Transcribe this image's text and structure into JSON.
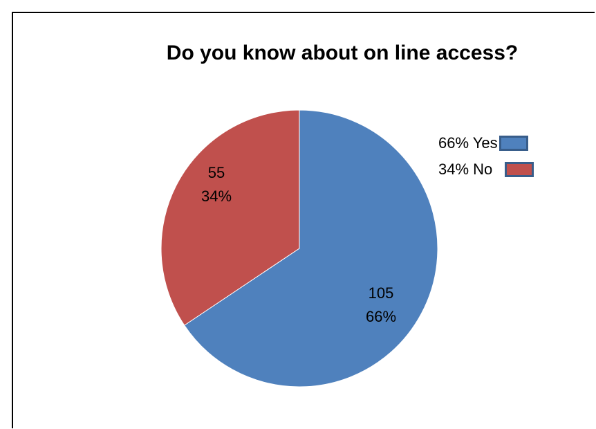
{
  "chart_data": {
    "type": "pie",
    "title": "Do you know about on line access?",
    "series": [
      {
        "values": [
          105,
          55
        ],
        "slices": [
          {
            "label": "Yes",
            "value": 105,
            "percent": 66,
            "value_label": "105",
            "percent_label": "66%",
            "legend_label": "66% Yes",
            "color": "#4f81bd"
          },
          {
            "label": "No",
            "value": 55,
            "percent": 34,
            "value_label": "55",
            "percent_label": "34%",
            "legend_label": "34% No",
            "color": "#c0504d"
          }
        ]
      }
    ],
    "start_angle_deg": 0,
    "direction": "clockwise",
    "legend_position": "top-right",
    "legend_swatch_border_color": "#385d8a",
    "slice_border_color": "#ffffff"
  }
}
